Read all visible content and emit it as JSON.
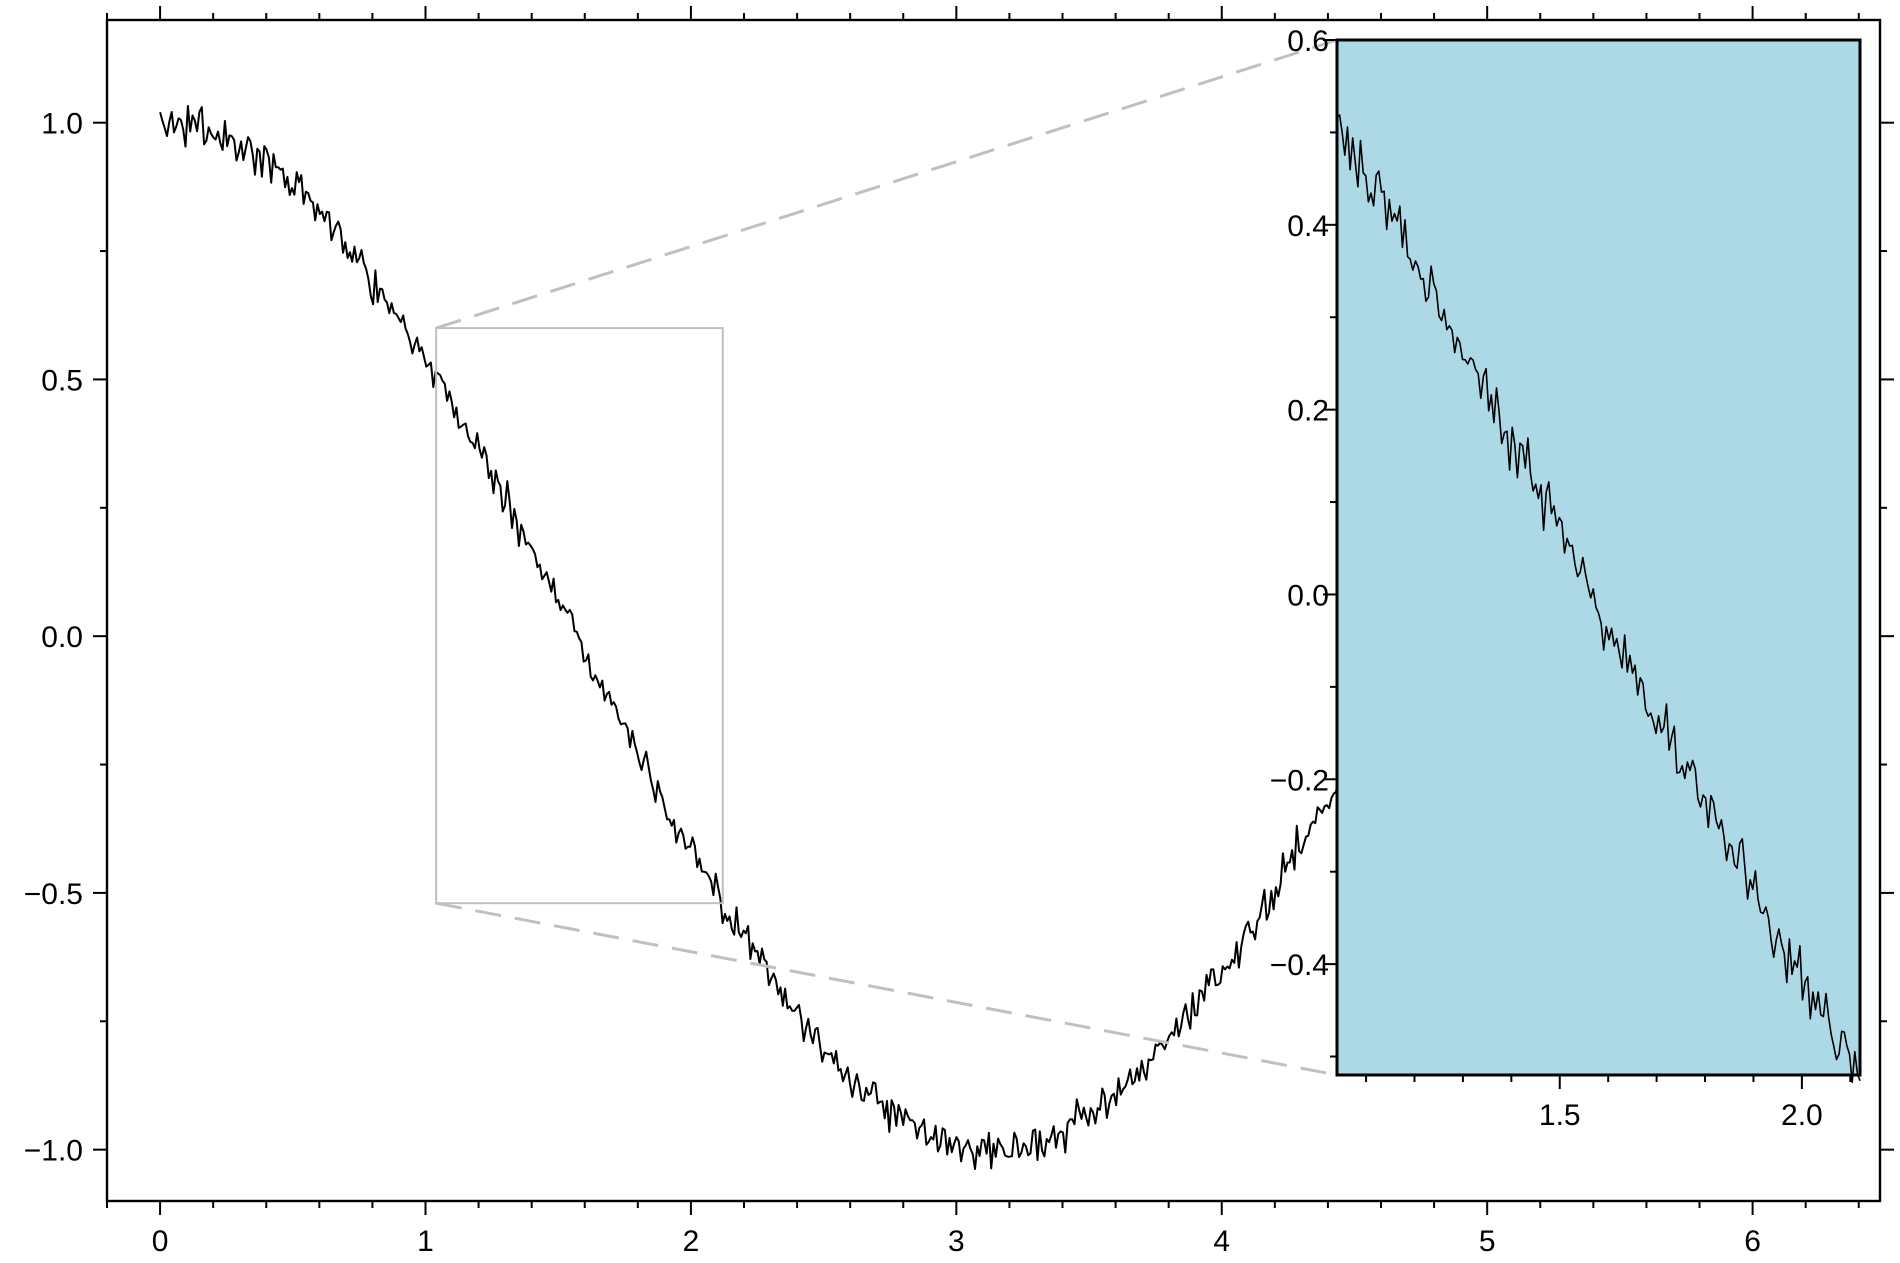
{
  "chart_data": [
    {
      "type": "line",
      "role": "main",
      "title": "",
      "xlabel": "",
      "ylabel": "",
      "xlim": [
        -0.2,
        6.48
      ],
      "ylim": [
        -1.1,
        1.2
      ],
      "grid": false,
      "frame_ticks_all_sides": true,
      "x_ticks": [
        {
          "value": 0,
          "label": "0"
        },
        {
          "value": 1,
          "label": "1"
        },
        {
          "value": 2,
          "label": "2"
        },
        {
          "value": 3,
          "label": "3"
        },
        {
          "value": 4,
          "label": "4"
        },
        {
          "value": 5,
          "label": "5"
        },
        {
          "value": 6,
          "label": "6"
        }
      ],
      "y_ticks": [
        {
          "value": 1.0,
          "label": "1.0"
        },
        {
          "value": 0.5,
          "label": "0.5"
        },
        {
          "value": 0.0,
          "label": "0.0"
        },
        {
          "value": -0.5,
          "label": "−0.5"
        },
        {
          "value": -1.0,
          "label": "−1.0"
        }
      ],
      "series": [
        {
          "function": "cos(x) + noise",
          "noise_amplitude": 0.035,
          "x_start": 0,
          "x_end": 6.28,
          "color": "#000000",
          "x": [
            0,
            0.2,
            0.4,
            0.6,
            0.8,
            1.0,
            1.2,
            1.4,
            1.6,
            1.8,
            2.0,
            2.2,
            2.4,
            2.6,
            2.8,
            3.0,
            3.2,
            3.4,
            3.6,
            3.8,
            4.0,
            4.2,
            4.4,
            4.6,
            4.8,
            5.0,
            5.2,
            5.4,
            5.6,
            5.8,
            6.0,
            6.2
          ],
          "y": [
            1.0,
            0.98,
            0.92,
            0.83,
            0.7,
            0.54,
            0.36,
            0.17,
            -0.03,
            -0.23,
            -0.42,
            -0.59,
            -0.74,
            -0.86,
            -0.94,
            -0.99,
            -1.0,
            -0.97,
            -0.9,
            -0.79,
            -0.65,
            -0.49,
            -0.31,
            -0.11,
            0.09,
            0.28,
            0.47,
            0.63,
            0.78,
            0.89,
            0.96,
            1.0
          ]
        }
      ],
      "zoom_region": {
        "x": [
          1.04,
          2.12
        ],
        "y": [
          -0.52,
          0.6
        ],
        "box_color": "#c0c0c0"
      }
    },
    {
      "type": "line",
      "role": "inset",
      "title": "",
      "xlabel": "",
      "ylabel": "",
      "xlim": [
        1.04,
        2.12
      ],
      "ylim": [
        -0.52,
        0.6
      ],
      "grid": false,
      "background": "#add8e6",
      "x_ticks": [
        {
          "value": 1.5,
          "label": "1.5"
        },
        {
          "value": 2.0,
          "label": "2.0"
        }
      ],
      "y_ticks": [
        {
          "value": 0.6,
          "label": "0.6"
        },
        {
          "value": 0.4,
          "label": "0.4"
        },
        {
          "value": 0.2,
          "label": "0.2"
        },
        {
          "value": 0.0,
          "label": "0.0"
        },
        {
          "value": -0.2,
          "label": "−0.2"
        },
        {
          "value": -0.4,
          "label": "−0.4"
        }
      ],
      "series": [
        {
          "function": "cos(x) + noise",
          "noise_amplitude": 0.035,
          "x_start": 1.04,
          "x_end": 2.12,
          "color": "#000000"
        }
      ],
      "connector_color": "#c0c0c0"
    }
  ]
}
